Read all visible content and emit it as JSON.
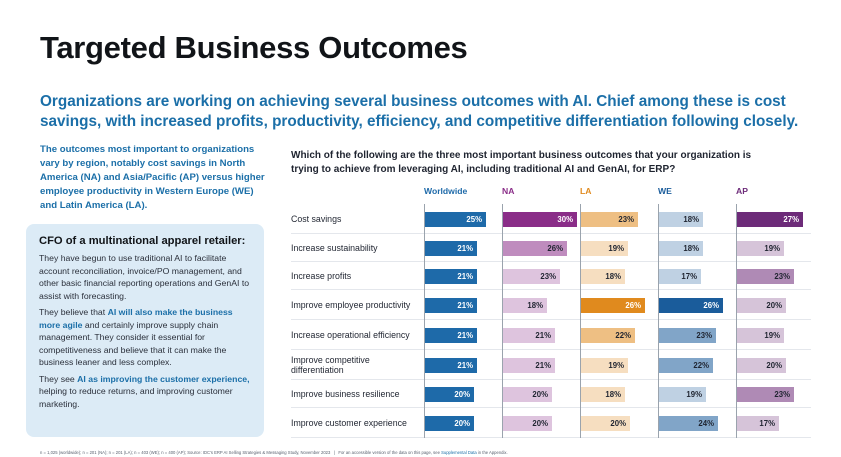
{
  "title": "Targeted Business Outcomes",
  "subtitle": "Organizations are working on achieving several business outcomes with AI. Chief among these is cost savings, with increased profits, productivity, efficiency, and competitive differentiation following closely.",
  "intro": "The outcomes most important to organizations vary by region, notably cost savings in North America (NA) and Asia/Pacific (AP) versus higher employee productivity in Western Europe (WE) and Latin America (LA).",
  "cfo_box": {
    "title": "CFO of a multinational apparel retailer:",
    "p1": "They have begun to use traditional AI to facilitate account reconciliation, invoice/PO management, and other basic financial reporting operations and GenAI to assist with forecasting.",
    "p2_pre": "They believe that ",
    "p2_hl": "AI will also make the business more agile",
    "p2_post": " and certainly improve supply chain management. They consider it essential for competitiveness and believe that it can make the business leaner and less complex.",
    "p3_pre": "They see ",
    "p3_hl": "AI as improving the customer experience,",
    "p3_post": " helping to reduce returns, and improving customer marketing."
  },
  "question": "Which of the following are the three most important business outcomes that your organization is trying to achieve from leveraging AI, including traditional AI and GenAI, for ERP?",
  "chart_data": {
    "type": "table",
    "title": "Which of the following are the three most important business outcomes that your organization is trying to achieve from leveraging AI, including traditional AI and GenAI, for ERP?",
    "unit": "%",
    "categories": [
      "Cost savings",
      "Increase sustainability",
      "Increase profits",
      "Improve employee productivity",
      "Increase operational efficiency",
      "Improve competitive differentiation",
      "Improve business resilience",
      "Improve customer experience"
    ],
    "series": [
      {
        "name": "Worldwide",
        "color": "#1e6aa9",
        "values": [
          25,
          21,
          21,
          21,
          21,
          21,
          20,
          20
        ]
      },
      {
        "name": "NA",
        "color": "#8a2d88",
        "values": [
          30,
          26,
          23,
          18,
          21,
          21,
          20,
          20
        ]
      },
      {
        "name": "LA",
        "color": "#e08a1e",
        "values": [
          23,
          19,
          18,
          26,
          22,
          19,
          18,
          20
        ]
      },
      {
        "name": "WE",
        "color": "#1a5c9b",
        "values": [
          18,
          18,
          17,
          26,
          23,
          22,
          19,
          24
        ]
      },
      {
        "name": "AP",
        "color": "#6d2b79",
        "values": [
          27,
          19,
          23,
          20,
          19,
          20,
          23,
          17
        ]
      }
    ],
    "xlim": [
      0,
      30
    ]
  },
  "footnote": "n = 1,025 (worldwide); n = 201 (NA); n = 201 (LA); n = 403 (WE); n = 400 (AP); Source: IDC's ERP AI Selling Strategies & Messaging Study, November 2023",
  "footnote_sep": "|",
  "footnote_access": "For an accessible version of the data on this page, see",
  "footnote_link": "Supplemental Data",
  "footnote_end": "in the Appendix."
}
